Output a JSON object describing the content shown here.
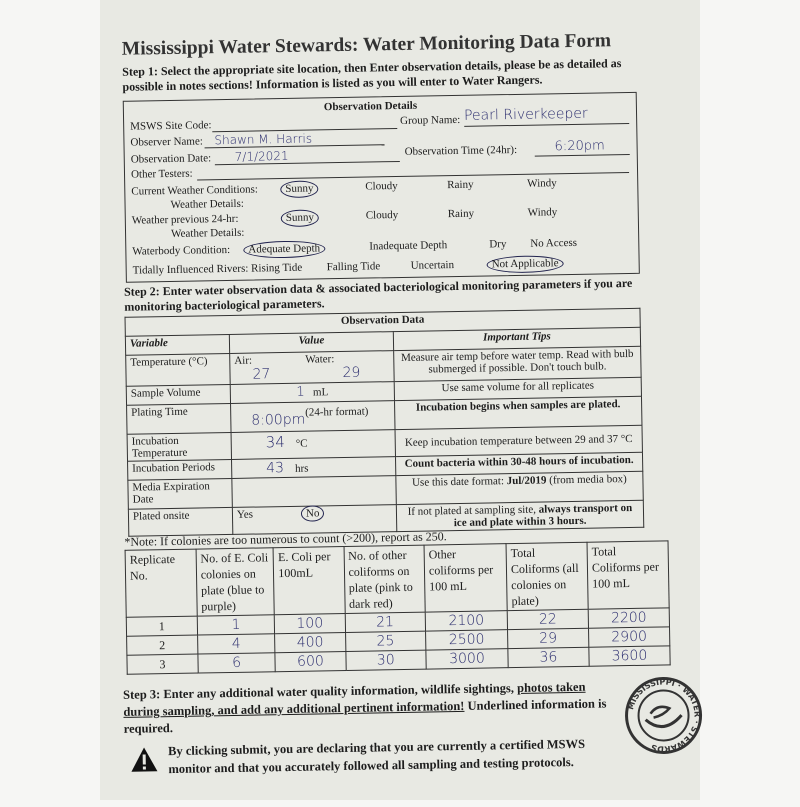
{
  "title": "Mississippi Water Stewards: Water Monitoring Data Form",
  "step1": "Step 1: Select the appropriate site location, then Enter observation details, please be as detailed as possible in notes sections! Information is listed as you will enter to Water Rangers.",
  "details": {
    "heading": "Observation Details",
    "site_code_label": "MSWS Site Code:",
    "group_label": "Group Name:",
    "group_value": "Pearl Riverkeeper",
    "observer_label": "Observer Name:",
    "observer_value": "Shawn M. Harris",
    "date_label": "Observation Date:",
    "date_value": "7/1/2021",
    "time_label": "Observation Time (24hr):",
    "time_value": "6:20pm",
    "testers_label": "Other Testers:",
    "current_weather_label": "Current Weather Conditions:",
    "weather_details_label": "Weather Details:",
    "prev_weather_label": "Weather previous 24-hr:",
    "weather_options": [
      "Sunny",
      "Cloudy",
      "Rainy",
      "Windy"
    ],
    "current_weather_selected": "Sunny",
    "prev_weather_selected": "Sunny",
    "waterbody_label": "Waterbody Condition:",
    "waterbody_options": [
      "Adequate Depth",
      "Inadequate Depth",
      "Dry",
      "No Access"
    ],
    "waterbody_selected": "Adequate Depth",
    "tidal_label": "Tidally Influenced Rivers: Rising Tide",
    "tidal_options": [
      "Falling Tide",
      "Uncertain",
      "Not Applicable"
    ],
    "tidal_selected": "Not Applicable"
  },
  "step2": "Step 2: Enter water observation data & associated bacteriological monitoring parameters if you are monitoring bacteriological parameters.",
  "obs": {
    "heading": "Observation Data",
    "col_variable": "Variable",
    "col_value": "Value",
    "col_tips": "Important Tips",
    "temp": {
      "label": "Temperature (°C)",
      "air_label": "Air:",
      "air": "27",
      "water_label": "Water:",
      "water": "29",
      "tip": "Measure air temp before water temp. Read with bulb submerged if possible. Don't touch bulb."
    },
    "volume": {
      "label": "Sample Volume",
      "value": "1",
      "unit": "mL",
      "tip": "Use same volume for all replicates"
    },
    "plating": {
      "label": "Plating Time",
      "value": "8:00pm",
      "unit": "(24-hr format)",
      "tip": "Incubation begins when samples are plated."
    },
    "inc_temp": {
      "label": "Incubation Temperature",
      "value": "34",
      "unit": "°C",
      "tip": "Keep incubation temperature between 29 and 37 °C"
    },
    "inc_period": {
      "label": "Incubation Periods",
      "value": "43",
      "unit": "hrs",
      "tip": "Count bacteria within 30-48 hours of incubation."
    },
    "media": {
      "label": "Media Expiration Date",
      "tip_a": "Use this date format: ",
      "tip_b": "Jul/2019",
      "tip_c": " (from media box)"
    },
    "onsite": {
      "label": "Plated onsite",
      "yes": "Yes",
      "no": "No",
      "selected": "No",
      "tip_a": "If not plated at sampling site, ",
      "tip_b": "always transport on ice and plate within 3 hours."
    }
  },
  "note": "*Note: If colonies are too numerous to count (>200), report as 250.",
  "replicates": {
    "headers": [
      "Replicate No.",
      "No. of E. Coli colonies on plate (blue to purple)",
      "E. Coli per 100mL",
      "No. of other coliforms on plate (pink to dark red)",
      "Other coliforms per 100 mL",
      "Total Coliforms (all colonies on plate)",
      "Total Coliforms per 100 mL"
    ],
    "rows": [
      [
        "1",
        "1",
        "100",
        "21",
        "2100",
        "22",
        "2200"
      ],
      [
        "2",
        "4",
        "400",
        "25",
        "2500",
        "29",
        "2900"
      ],
      [
        "3",
        "6",
        "600",
        "30",
        "3000",
        "36",
        "3600"
      ]
    ]
  },
  "step3_a": "Step 3: Enter any additional water quality information, wildlife sightings, ",
  "step3_u": "photos taken during sampling, and add any additional pertinent information!",
  "step3_b": " Underlined information is required.",
  "warning": "By clicking submit, you are declaring that you are currently a certified MSWS monitor and that you accurately followed all sampling and testing protocols.",
  "logo_text": "MISSISSIPPI · WATER · STEWARDS"
}
